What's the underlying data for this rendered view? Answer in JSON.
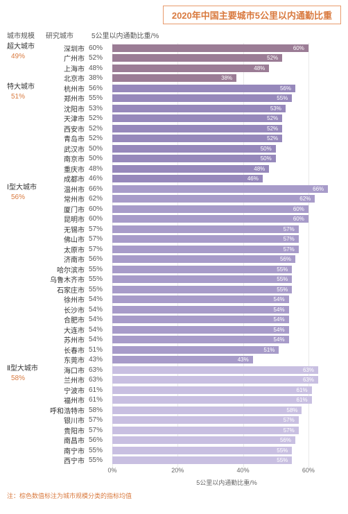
{
  "title": "2020年中国主要城市5公里以内通勤比重",
  "headers": {
    "category": "城市规模",
    "city": "研究城市",
    "value_header": "5公里以内通勤比重/%"
  },
  "xaxis": {
    "min": 0,
    "max": 70,
    "ticks": [
      0,
      20,
      40,
      60
    ],
    "tick_labels": [
      "0%",
      "20%",
      "40%",
      "60%"
    ],
    "label": "5公里以内通勤比重/%"
  },
  "note": "注：棕色数值标注为城市规模分类的指标均值",
  "groups": [
    {
      "name": "超大城市",
      "avg": "49%",
      "bar_color": "#9b7c95",
      "cities": [
        {
          "name": "深圳市",
          "value": 60
        },
        {
          "name": "广州市",
          "value": 52
        },
        {
          "name": "上海市",
          "value": 48
        },
        {
          "name": "北京市",
          "value": 38
        }
      ]
    },
    {
      "name": "特大城市",
      "avg": "51%",
      "bar_color": "#9688bb",
      "cities": [
        {
          "name": "杭州市",
          "value": 56
        },
        {
          "name": "郑州市",
          "value": 55
        },
        {
          "name": "沈阳市",
          "value": 53
        },
        {
          "name": "天津市",
          "value": 52
        },
        {
          "name": "西安市",
          "value": 52
        },
        {
          "name": "青岛市",
          "value": 52
        },
        {
          "name": "武汉市",
          "value": 50
        },
        {
          "name": "南京市",
          "value": 50
        },
        {
          "name": "重庆市",
          "value": 48
        },
        {
          "name": "成都市",
          "value": 46
        }
      ]
    },
    {
      "name": "Ⅰ型大城市",
      "avg": "56%",
      "bar_color": "#a79bc9",
      "cities": [
        {
          "name": "温州市",
          "value": 66
        },
        {
          "name": "常州市",
          "value": 62
        },
        {
          "name": "厦门市",
          "value": 60
        },
        {
          "name": "昆明市",
          "value": 60
        },
        {
          "name": "无锡市",
          "value": 57
        },
        {
          "name": "佛山市",
          "value": 57
        },
        {
          "name": "太原市",
          "value": 57
        },
        {
          "name": "济南市",
          "value": 56
        },
        {
          "name": "哈尔滨市",
          "value": 55
        },
        {
          "name": "乌鲁木齐市",
          "value": 55
        },
        {
          "name": "石家庄市",
          "value": 55
        },
        {
          "name": "徐州市",
          "value": 54
        },
        {
          "name": "长沙市",
          "value": 54
        },
        {
          "name": "合肥市",
          "value": 54
        },
        {
          "name": "大连市",
          "value": 54
        },
        {
          "name": "苏州市",
          "value": 54
        },
        {
          "name": "长春市",
          "value": 51
        },
        {
          "name": "东莞市",
          "value": 43
        }
      ]
    },
    {
      "name": "Ⅱ型大城市",
      "avg": "58%",
      "bar_color": "#c8bfe1",
      "cities": [
        {
          "name": "海口市",
          "value": 63
        },
        {
          "name": "兰州市",
          "value": 63
        },
        {
          "name": "宁波市",
          "value": 61
        },
        {
          "name": "福州市",
          "value": 61
        },
        {
          "name": "呼和浩特市",
          "value": 58
        },
        {
          "name": "银川市",
          "value": 57
        },
        {
          "name": "贵阳市",
          "value": 57
        },
        {
          "name": "南昌市",
          "value": 56
        },
        {
          "name": "南宁市",
          "value": 55
        },
        {
          "name": "西宁市",
          "value": 55
        }
      ]
    }
  ]
}
